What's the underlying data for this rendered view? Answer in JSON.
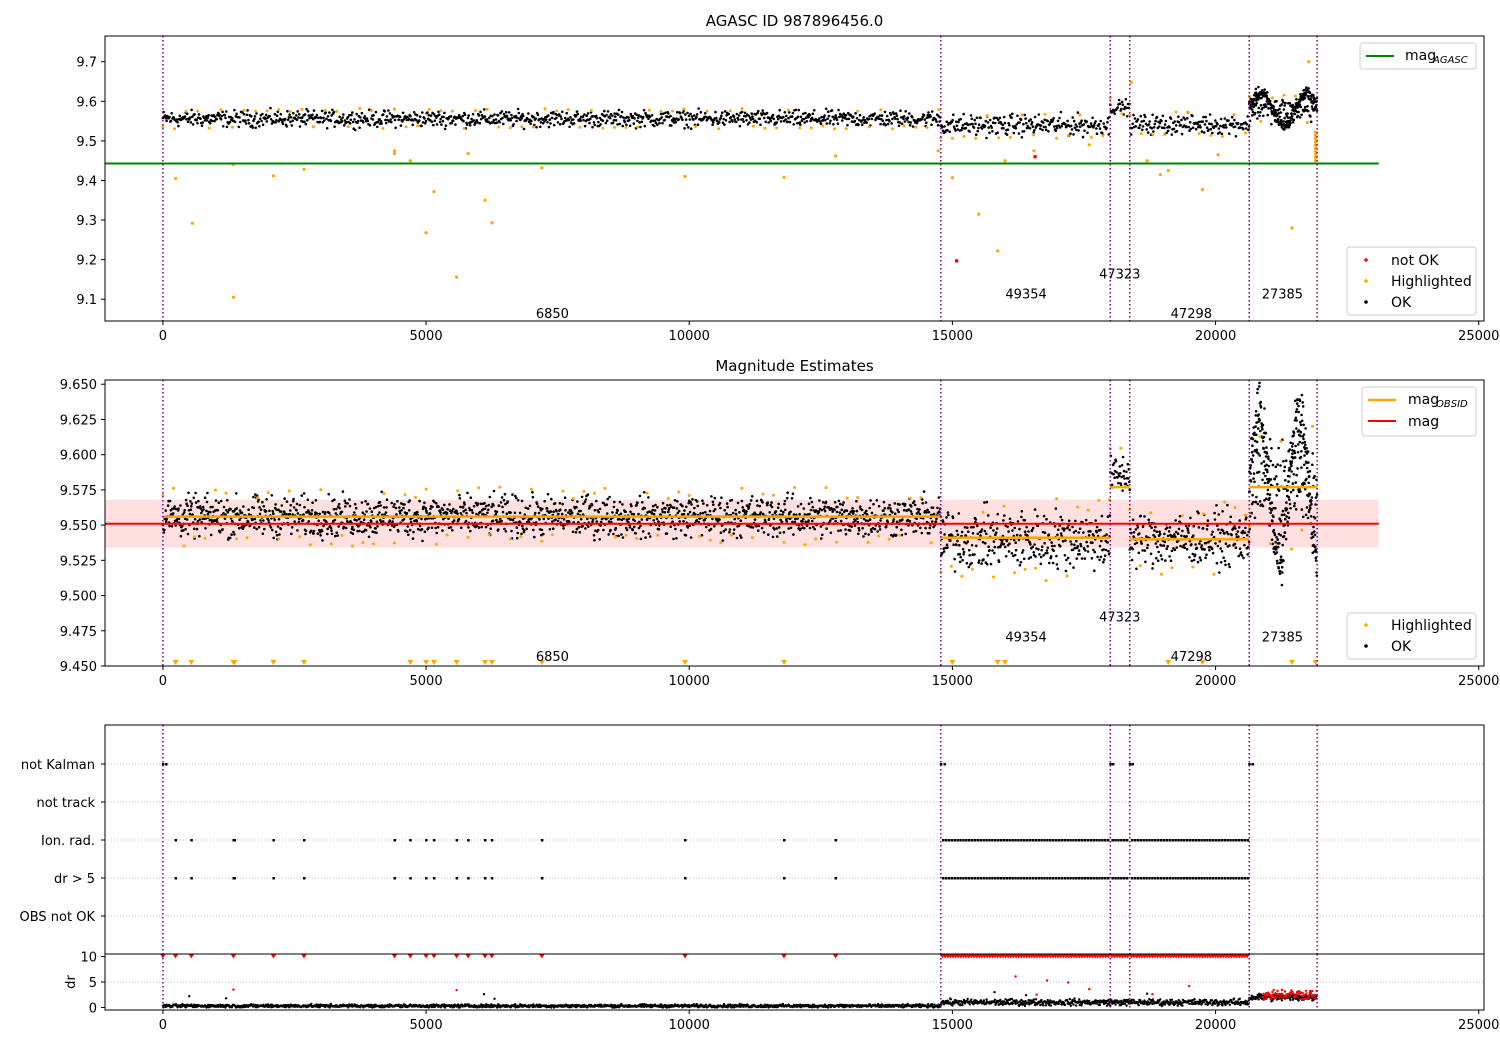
{
  "chart_data": [
    {
      "type": "scatter",
      "title": "AGASC ID 987896456.0",
      "xlim": [
        -1100,
        25100
      ],
      "ylim": [
        9.045,
        9.765
      ],
      "x_ticks": [
        0,
        5000,
        10000,
        15000,
        20000,
        25000
      ],
      "y_ticks": [
        9.1,
        9.2,
        9.3,
        9.4,
        9.5,
        9.6,
        9.7
      ],
      "y_tick_labels": [
        "9.1",
        "9.2",
        "9.3",
        "9.4",
        "9.5",
        "9.6",
        "9.7"
      ],
      "obs_boundaries": [
        0,
        14780,
        18000,
        18370,
        20640,
        21930
      ],
      "obs_labels": [
        {
          "text": "6850",
          "x": 7400,
          "y": 9.065
        },
        {
          "text": "49354",
          "x": 16400,
          "y": 9.115
        },
        {
          "text": "47323",
          "x": 18180,
          "y": 9.165
        },
        {
          "text": "47298",
          "x": 19540,
          "y": 9.065
        },
        {
          "text": "27385",
          "x": 21270,
          "y": 9.115
        }
      ],
      "reference_line": {
        "name": "mag_AGASC",
        "y": 9.443,
        "x_end": 23100,
        "color": "#008000"
      },
      "segments": [
        {
          "x0": 0,
          "x1": 14780,
          "level": 9.556,
          "spread": 0.02
        },
        {
          "x0": 14780,
          "x1": 18000,
          "level": 9.54,
          "spread": 0.026
        },
        {
          "x0": 18000,
          "x1": 18370,
          "level": 9.585,
          "spread": 0.018
        },
        {
          "x0": 18370,
          "x1": 20640,
          "level": 9.542,
          "spread": 0.024
        },
        {
          "x0": 20640,
          "x1": 21930,
          "level": 9.58,
          "spread": 0.03
        }
      ],
      "highlighted_points": [
        [
          240,
          9.405
        ],
        [
          560,
          9.292
        ],
        [
          1340,
          9.105
        ],
        [
          1340,
          9.44
        ],
        [
          2100,
          9.412
        ],
        [
          2680,
          9.428
        ],
        [
          4400,
          9.468
        ],
        [
          4400,
          9.475
        ],
        [
          4700,
          9.45
        ],
        [
          5000,
          9.268
        ],
        [
          5150,
          9.372
        ],
        [
          5580,
          9.156
        ],
        [
          5800,
          9.468
        ],
        [
          6120,
          9.35
        ],
        [
          6250,
          9.293
        ],
        [
          7200,
          9.432
        ],
        [
          9920,
          9.41
        ],
        [
          11800,
          9.408
        ],
        [
          12780,
          9.462
        ],
        [
          14730,
          9.475
        ],
        [
          15000,
          9.407
        ],
        [
          15500,
          9.315
        ],
        [
          15860,
          9.222
        ],
        [
          16000,
          9.45
        ],
        [
          16550,
          9.475
        ],
        [
          17600,
          9.49
        ],
        [
          18400,
          9.648
        ],
        [
          18700,
          9.45
        ],
        [
          18950,
          9.415
        ],
        [
          19100,
          9.425
        ],
        [
          19750,
          9.377
        ],
        [
          20050,
          9.465
        ],
        [
          21450,
          9.28
        ]
      ],
      "not_ok_points": [
        [
          15080,
          9.197
        ],
        [
          16570,
          9.46
        ]
      ],
      "legend": {
        "line": {
          "label": "mag",
          "subscript": "AGASC"
        },
        "markers": [
          "not OK",
          "Highlighted",
          "OK"
        ]
      }
    },
    {
      "type": "scatter",
      "title": "Magnitude Estimates",
      "xlim": [
        -1100,
        25100
      ],
      "ylim": [
        9.45,
        9.653
      ],
      "x_ticks": [
        0,
        5000,
        10000,
        15000,
        20000,
        25000
      ],
      "y_ticks": [
        9.45,
        9.475,
        9.5,
        9.525,
        9.55,
        9.575,
        9.6,
        9.625,
        9.65
      ],
      "y_tick_labels": [
        "9.450",
        "9.475",
        "9.500",
        "9.525",
        "9.550",
        "9.575",
        "9.600",
        "9.625",
        "9.650"
      ],
      "obs_boundaries": [
        0,
        14780,
        18000,
        18370,
        20640,
        21930
      ],
      "obs_labels": [
        {
          "text": "6850",
          "x": 7400,
          "y": 9.457
        },
        {
          "text": "49354",
          "x": 16400,
          "y": 9.471
        },
        {
          "text": "47323",
          "x": 18180,
          "y": 9.485
        },
        {
          "text": "47298",
          "x": 19540,
          "y": 9.457
        },
        {
          "text": "27385",
          "x": 21270,
          "y": 9.471
        }
      ],
      "mag_line": {
        "name": "mag",
        "y": 9.551,
        "band": [
          9.534,
          9.568
        ],
        "x_end": 23100,
        "color": "#ff0000"
      },
      "obsid_mags": [
        {
          "x0": 0,
          "x1": 14780,
          "y": 9.556
        },
        {
          "x0": 14780,
          "x1": 18000,
          "y": 9.541
        },
        {
          "x0": 18000,
          "x1": 18370,
          "y": 9.577
        },
        {
          "x0": 18370,
          "x1": 20640,
          "y": 9.54
        },
        {
          "x0": 20640,
          "x1": 21930,
          "y": 9.577
        }
      ],
      "segments": [
        {
          "x0": 0,
          "x1": 14780,
          "level": 9.556,
          "spread": 0.014
        },
        {
          "x0": 14780,
          "x1": 18000,
          "level": 9.54,
          "spread": 0.02
        },
        {
          "x0": 18000,
          "x1": 18370,
          "level": 9.585,
          "spread": 0.014
        },
        {
          "x0": 18370,
          "x1": 20640,
          "level": 9.54,
          "spread": 0.018
        },
        {
          "x0": 20640,
          "x1": 21930,
          "level": 9.577,
          "spread": 0.03
        }
      ],
      "legend": {
        "line1": {
          "label": "mag",
          "subscript": "OBSID"
        },
        "line2": {
          "label": "mag"
        },
        "markers": [
          "Highlighted",
          "OK"
        ]
      }
    },
    {
      "type": "scatter",
      "title": "",
      "xlim": [
        -1100,
        25100
      ],
      "categories": [
        "not Kalman",
        "not track",
        "Ion. rad.",
        "dr > 5",
        "OBS not OK"
      ],
      "flag_x": {
        "not Kalman": [
          0,
          60,
          14780,
          14850,
          18000,
          18050,
          18370,
          18420,
          20640,
          20700
        ],
        "not track": [],
        "Ion. rad.": [
          240,
          540,
          1340,
          1360,
          2100,
          2680,
          4400,
          4700,
          5000,
          5150,
          5580,
          5800,
          6120,
          6250,
          7200,
          9920,
          11800,
          12780
        ],
        "dr > 5": [
          240,
          540,
          1340,
          1360,
          2100,
          2680,
          4400,
          4700,
          5000,
          5150,
          5580,
          5800,
          6120,
          6250,
          7200,
          9920,
          11800,
          12780
        ],
        "OBS not OK": []
      },
      "flag_dense_ranges": [
        [
          14780,
          18000
        ],
        [
          18000,
          18370
        ],
        [
          18370,
          20640
        ]
      ]
    },
    {
      "type": "scatter",
      "ylabel": "dr",
      "xlim": [
        -1100,
        25100
      ],
      "ylim": [
        -0.5,
        10.5
      ],
      "x_ticks": [
        0,
        5000,
        10000,
        15000,
        20000,
        25000
      ],
      "y_ticks": [
        0,
        5,
        10
      ],
      "y_tick_labels": [
        "0",
        "5",
        "10"
      ],
      "segments": [
        {
          "x0": 0,
          "x1": 14780,
          "level": 0.3,
          "spread": 0.25
        },
        {
          "x0": 14780,
          "x1": 20640,
          "level": 1.0,
          "spread": 0.5
        },
        {
          "x0": 20640,
          "x1": 21930,
          "level": 2.0,
          "spread": 0.6
        }
      ],
      "red_points": [
        [
          1340,
          3.5
        ],
        [
          5580,
          3.4
        ],
        [
          16200,
          6.1
        ],
        [
          16800,
          5.3
        ],
        [
          17200,
          4.9
        ],
        [
          17600,
          3.6
        ],
        [
          16600,
          2.5
        ],
        [
          19500,
          4.2
        ],
        [
          18800,
          2.6
        ]
      ],
      "black_outliers": [
        [
          500,
          2.2
        ],
        [
          1200,
          1.8
        ],
        [
          6100,
          2.6
        ],
        [
          6300,
          1.7
        ],
        [
          15800,
          3.0
        ],
        [
          16400,
          2.4
        ],
        [
          18700,
          2.7
        ]
      ],
      "clipped_red_x": [
        0,
        240,
        540,
        1340,
        2100,
        2680,
        4400,
        4700,
        5000,
        5150,
        5580,
        5800,
        6120,
        6250,
        7200,
        9920,
        11800,
        12780
      ]
    }
  ],
  "colors": {
    "ok": "#000000",
    "highlighted": "#ffa500",
    "not_ok": "#ff0000",
    "obs_line": "#800080",
    "agasc": "#008000",
    "mag": "#ff0000",
    "obsid": "#ffa500"
  }
}
